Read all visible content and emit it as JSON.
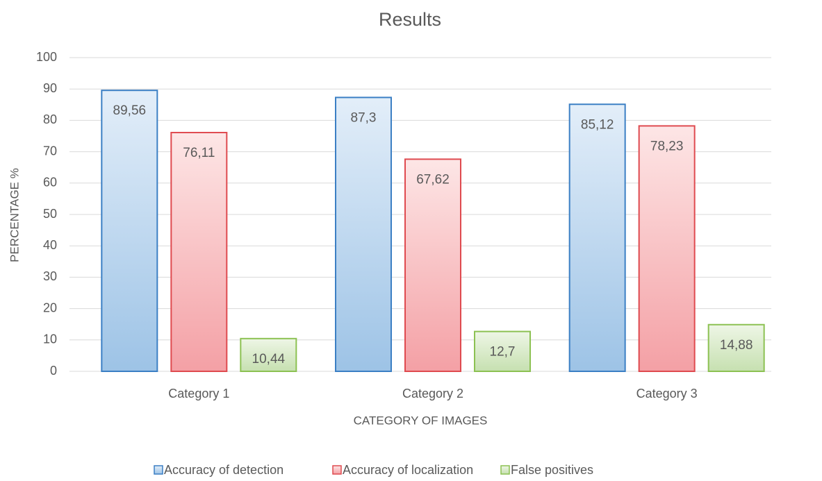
{
  "chart_data": {
    "type": "bar",
    "title": "Results",
    "x_label": "CATEGORY OF IMAGES",
    "y_label": "PERCENTAGE %",
    "categories": [
      "Category 1",
      "Category 2",
      "Category 3"
    ],
    "series": [
      {
        "name": "Accuracy of detection",
        "color": "#3b7fc4",
        "gradient": [
          "#e3eef9",
          "#9dc3e6"
        ],
        "values": [
          89.56,
          87.3,
          85.12
        ],
        "value_labels": [
          "89,56",
          "87,3",
          "85,12"
        ]
      },
      {
        "name": "Accuracy of localization",
        "color": "#df4a4f",
        "gradient": [
          "#fde6e6",
          "#f4a0a5"
        ],
        "values": [
          76.11,
          67.62,
          78.23
        ],
        "value_labels": [
          "76,11",
          "67,62",
          "78,23"
        ]
      },
      {
        "name": "False positives",
        "color": "#8cc152",
        "gradient": [
          "#eef6e6",
          "#c6e0b0"
        ],
        "values": [
          10.44,
          12.7,
          14.88
        ],
        "value_labels": [
          "10,44",
          "12,7",
          "14,88"
        ]
      }
    ],
    "ylim": [
      0,
      100
    ],
    "yticks": [
      0,
      10,
      20,
      30,
      40,
      50,
      60,
      70,
      80,
      90,
      100
    ],
    "grid": true,
    "legend": "bottom"
  }
}
